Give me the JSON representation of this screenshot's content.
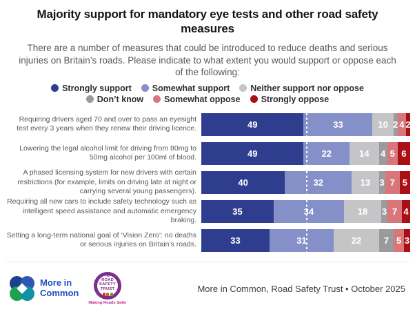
{
  "header": {
    "title": "Majority support for mandatory eye tests and other road safety measures",
    "subtitle": "There are a number of measures that could be introduced to reduce deaths and serious injuries on Britain’s roads. Please indicate to what extent you would support or oppose each of the following:"
  },
  "chart_data": {
    "type": "bar",
    "orientation": "horizontal-stacked",
    "xlim": [
      0,
      100
    ],
    "reference_line_pct": 50,
    "grid": false,
    "legend_position": "top-center",
    "legend_rows": [
      [
        0,
        1,
        2
      ],
      [
        3,
        4,
        5
      ]
    ],
    "categories": [
      "Requiring drivers aged 70 and over to pass an eyesight test every 3 years when they renew their driving licence.",
      "Lowering the legal alcohol limit for driving from 80mg to 50mg alcohol per 100ml of blood.",
      "A phased licensing system for new drivers with certain restrictions (for example, limits on driving late at night or carrying several young passengers).",
      "Requiring all new cars to include safety technology such as intelligent speed assistance and automatic emergency braking.",
      "Setting a long-term national goal of ‘Vision Zero’: no deaths or serious injuries on Britain’s roads."
    ],
    "series": [
      {
        "name": "Strongly support",
        "color": "#2e3d8e",
        "values": [
          49,
          49,
          40,
          35,
          33
        ]
      },
      {
        "name": "Somewhat support",
        "color": "#8690c8",
        "values": [
          33,
          22,
          32,
          34,
          31
        ]
      },
      {
        "name": "Neither support nor oppose",
        "color": "#c5c5c7",
        "values": [
          10,
          14,
          13,
          18,
          22
        ]
      },
      {
        "name": "Don’t know",
        "color": "#9b9b9d",
        "values": [
          2,
          4,
          3,
          3,
          7
        ]
      },
      {
        "name": "Somewhat oppose",
        "color": "#d8767a",
        "values": [
          4,
          5,
          7,
          7,
          5
        ]
      },
      {
        "name": "Strongly oppose",
        "color": "#aa0f16",
        "values": [
          2,
          6,
          5,
          4,
          3
        ]
      }
    ]
  },
  "footer": {
    "source": "More in Common, Road Safety Trust • October 2025",
    "mic_logo_text": "More in\nCommon",
    "mic_colors": {
      "tl": "#1d3f8e",
      "tr": "#3056b4",
      "bl": "#1ea24f",
      "br": "#0f93a4",
      "text": "#1d50c4"
    },
    "rst": {
      "the": "THE",
      "words": [
        "ROAD",
        "SAFETY",
        "TRUST"
      ],
      "caption": "Making Roads Safer",
      "purple": "#7b2e8c",
      "magenta": "#c0268c",
      "people_colors": [
        "#d22b1f",
        "#e25a1c",
        "#5aa329"
      ]
    }
  }
}
